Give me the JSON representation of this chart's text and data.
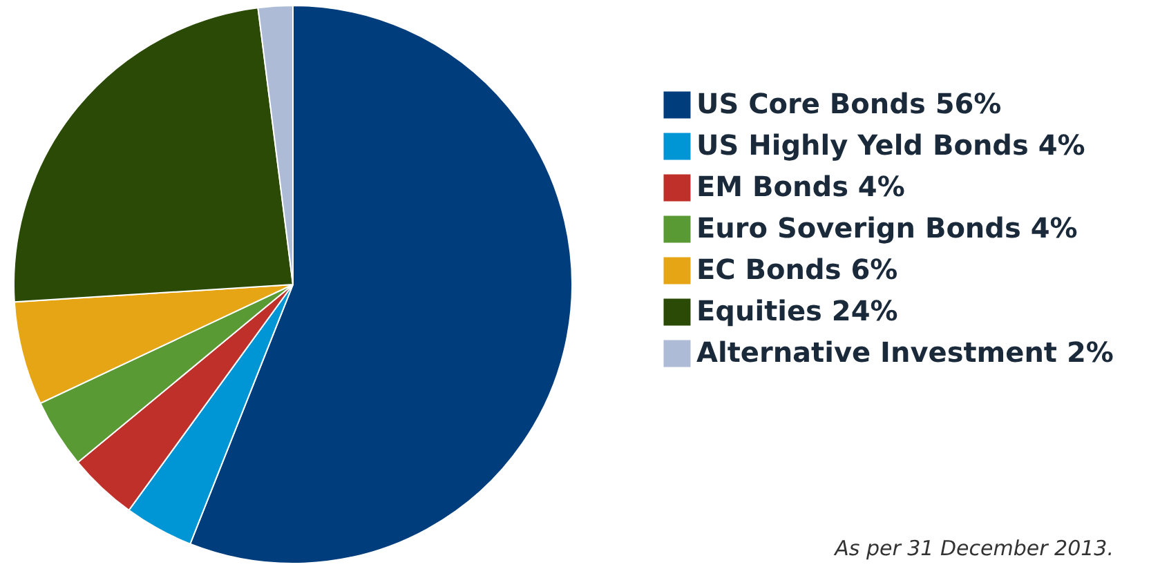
{
  "chart_data": {
    "type": "pie",
    "categories": [
      "US Core Bonds 56%",
      "US Highly Yeld Bonds 4%",
      "EM Bonds 4%",
      "Euro Soverign Bonds 4%",
      "EC Bonds 6%",
      "Equities 24%",
      "Alternative Investment 2%"
    ],
    "values": [
      56,
      4,
      4,
      4,
      6,
      24,
      2
    ],
    "colors": [
      "#003d7c",
      "#0096d6",
      "#c0302b",
      "#5a9a35",
      "#e6a514",
      "#2a4a05",
      "#adbbd6"
    ],
    "legend": "right",
    "annotations": [
      "As per 31 December 2013."
    ]
  }
}
